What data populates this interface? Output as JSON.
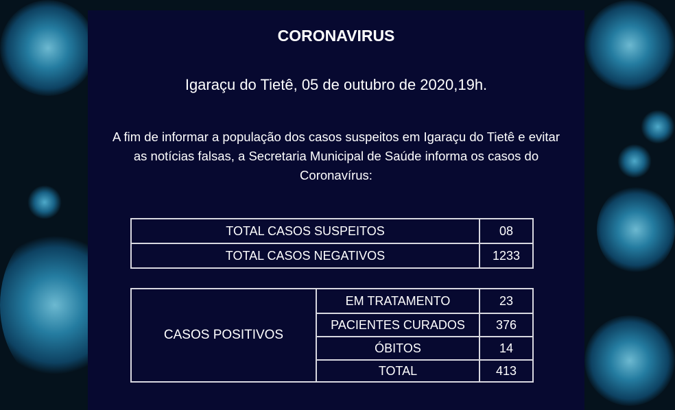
{
  "title": "CORONAVIRUS",
  "date_line": "Igaraçu do Tietê, 05 de outubro de 2020,19h.",
  "intro": "A fim de informar a população dos casos suspeitos em Igaraçu do Tietê e evitar as notícias falsas, a Secretaria Municipal de Saúde informa os casos do Coronavírus:",
  "summary": [
    {
      "label": "TOTAL CASOS SUSPEITOS",
      "value": "08"
    },
    {
      "label": "TOTAL CASOS NEGATIVOS",
      "value": "1233"
    }
  ],
  "positive": {
    "label": "CASOS POSITIVOS",
    "rows": [
      {
        "label": "EM TRATAMENTO",
        "value": "23"
      },
      {
        "label": "PACIENTES CURADOS",
        "value": "376"
      },
      {
        "label": "ÓBITOS",
        "value": "14"
      },
      {
        "label": "TOTAL",
        "value": "413"
      }
    ]
  },
  "colors": {
    "panel": "#070930",
    "background": "#05121c",
    "virus": "#2a8fb8"
  }
}
